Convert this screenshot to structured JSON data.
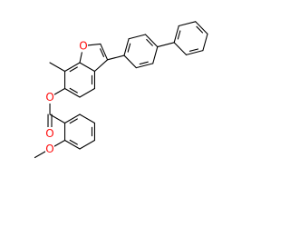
{
  "atoms": [
    "O",
    "O",
    "O",
    "O"
  ]
}
